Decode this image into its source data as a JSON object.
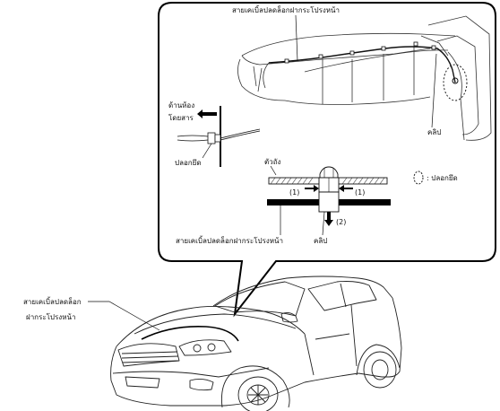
{
  "labels": {
    "cable_top": "สายเคเบิ้ลปลดล็อกฝากระโปรงหน้า",
    "clip_top": "คลิป",
    "cabin_side_line1": "ด้านห้อง",
    "cabin_side_line2": "โดยสาร",
    "grommet": "ปลอกยึด",
    "body": "ตัวถัง",
    "step_1_left": "(1)",
    "step_1_right": "(1)",
    "step_2": "(2)",
    "legend_grommet": ": ปลอกยึด",
    "cable_bottom": "สายเคเบิ้ลปลดล็อกฝากระโปรงหน้า",
    "clip_bottom": "คลิป",
    "callout_line1": "สายเคเบิ้ลปลดล็อก",
    "callout_line2": "ฝากระโปรงหน้า"
  }
}
